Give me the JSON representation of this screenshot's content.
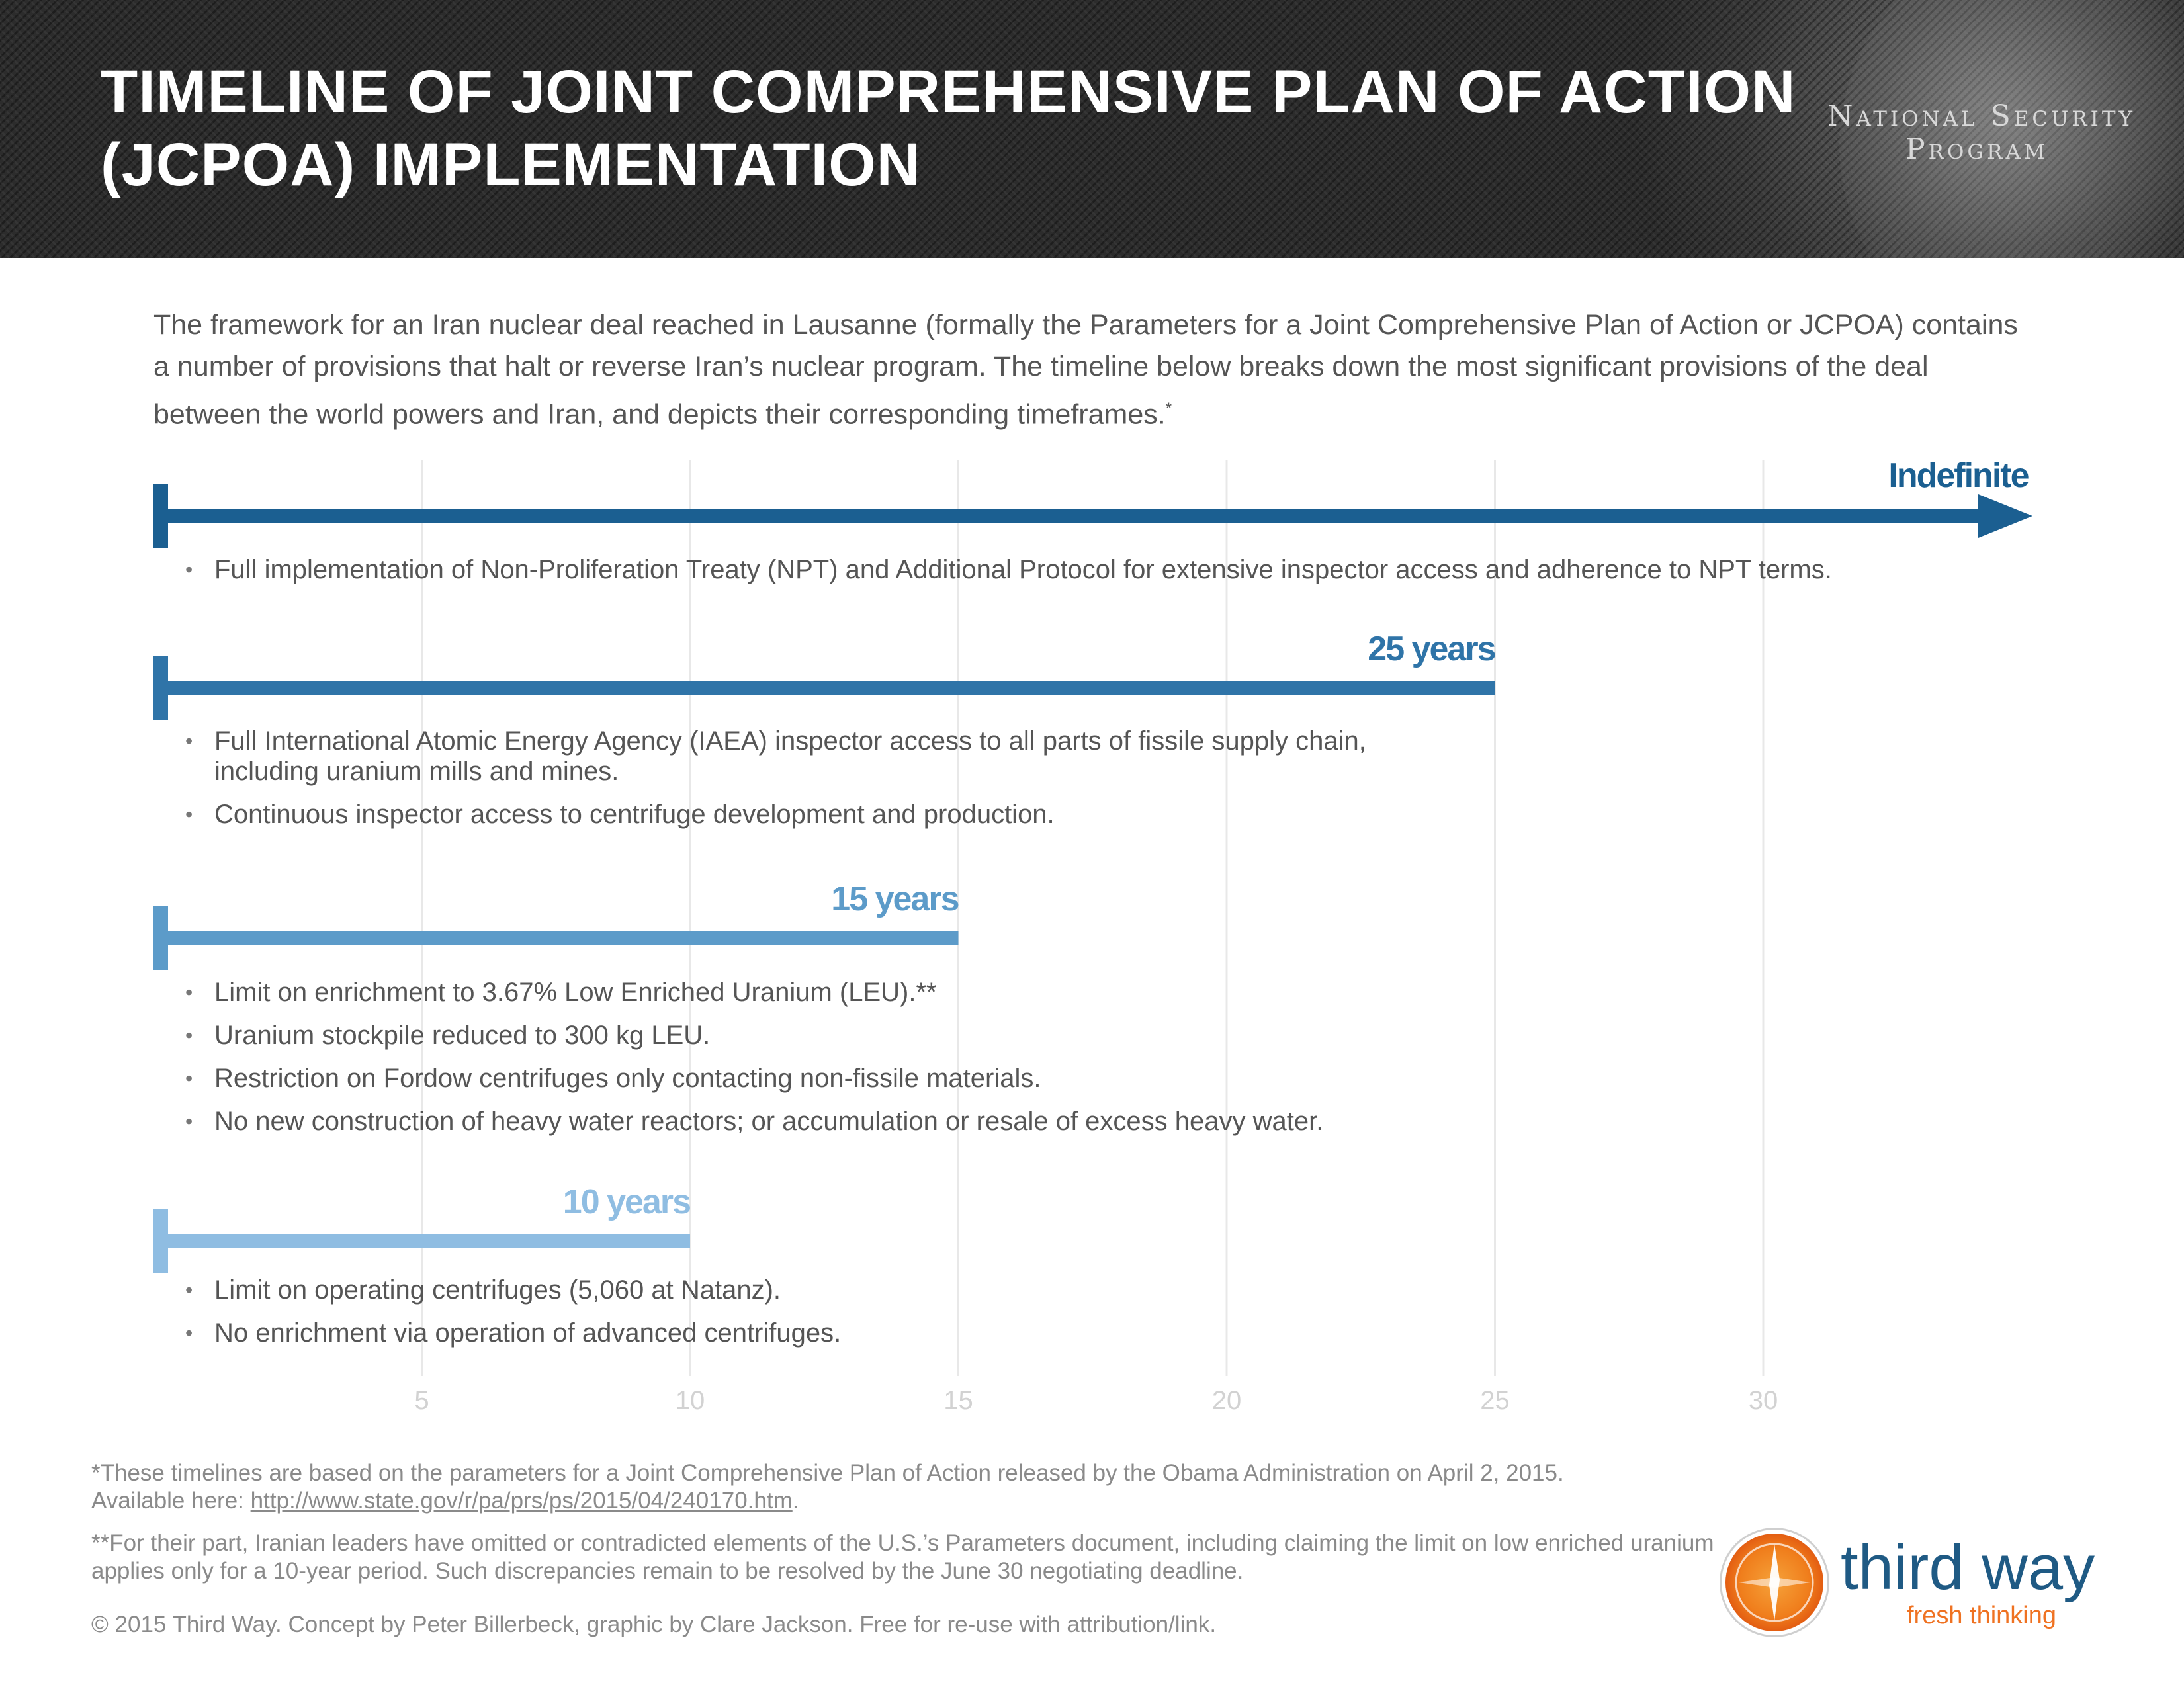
{
  "header": {
    "title_line1": "TIMELINE OF JOINT COMPREHENSIVE PLAN OF ACTION",
    "title_line2": "(JCPOA) IMPLEMENTATION",
    "brand_line1": "National Security",
    "brand_line2": "Program"
  },
  "intro": {
    "text": "The framework for an Iran nuclear deal reached in Lausanne (formally the Parameters for a Joint Comprehensive Plan of Action or JCPOA) contains a number of provisions that halt or reverse Iran’s nuclear program. The timeline below breaks down the most significant provisions of the deal between the world powers and Iran, and depicts their corresponding timeframes.",
    "footnote_mark": "*"
  },
  "chart_data": {
    "type": "timeline",
    "x_ticks": [
      5,
      10,
      15,
      20,
      25,
      30
    ],
    "x_tick_labels": [
      "5",
      "10",
      "15",
      "20",
      "25",
      "30"
    ],
    "xlim": [
      0,
      35
    ],
    "grid": true,
    "series": [
      {
        "label": "Indefinite",
        "end": null,
        "indefinite": true,
        "color": "#1b5f91",
        "provisions": [
          "Full implementation of Non-Proliferation Treaty (NPT) and Additional Protocol for extensive inspector access and adherence to NPT terms."
        ]
      },
      {
        "label": "25 years",
        "end": 25,
        "indefinite": false,
        "color": "#2f74a8",
        "provisions": [
          "Full International Atomic Energy Agency (IAEA) inspector access to all parts of fissile supply chain, including uranium mills and mines.",
          "Continuous inspector access to centrifuge development and production."
        ]
      },
      {
        "label": "15 years",
        "end": 15,
        "indefinite": false,
        "color": "#5c9bc9",
        "provisions": [
          "Limit on enrichment to 3.67% Low Enriched Uranium (LEU).**",
          "Uranium stockpile reduced to 300 kg LEU.",
          "Restriction on Fordow centrifuges only contacting non-fissile materials.",
          "No new construction of heavy water reactors; or accumulation or resale of excess heavy water."
        ]
      },
      {
        "label": "10 years",
        "end": 10,
        "indefinite": false,
        "color": "#8fbde2",
        "provisions": [
          "Limit on operating centrifuges (5,060 at Natanz).",
          "No enrichment via operation of advanced centrifuges."
        ]
      }
    ]
  },
  "footnotes": {
    "note1_text": "*These timelines are based on the parameters for a Joint Comprehensive Plan of Action released by the Obama Administration on April 2, 2015.",
    "note1_link_prefix": "Available here: ",
    "note1_link": "http://www.state.gov/r/pa/prs/ps/2015/04/240170.htm",
    "note1_link_suffix": ".",
    "note2_text": "**For their part, Iranian leaders have omitted or contradicted elements of the U.S.’s Parameters document, including claiming the limit on low enriched uranium applies only for a 10-year period. Such discrepancies remain to be resolved by the June 30 negotiating deadline.",
    "credit": "© 2015 Third Way. Concept by Peter Billerbeck, graphic by Clare Jackson. Free for re-use with attribution/link."
  },
  "logo": {
    "name": "third way",
    "tagline": "fresh thinking",
    "icon": "compass-star-icon"
  }
}
